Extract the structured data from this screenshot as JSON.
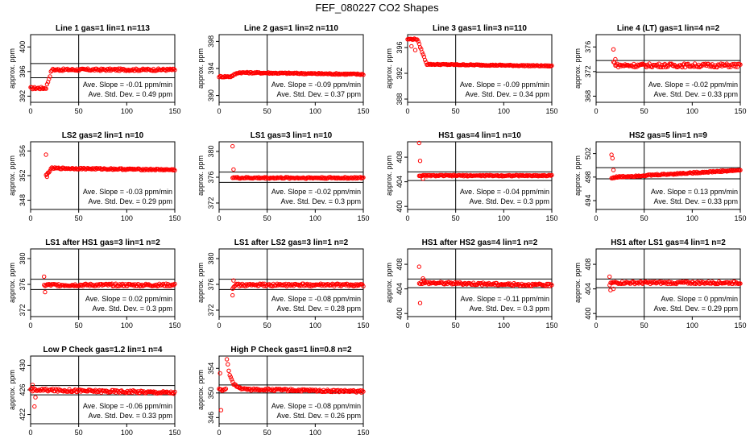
{
  "page": {
    "title": "FEF_080227  CO2 Shapes"
  },
  "colors": {
    "points": "#ff0000",
    "axis": "#000000",
    "background": "#ffffff"
  },
  "chart_data": [
    {
      "type": "scatter",
      "title": "Line 1 gas=1 lin=1 n=113",
      "ylabel": "approx. ppm",
      "xlim": [
        0,
        150
      ],
      "ylim": [
        391,
        402
      ],
      "xticks": [
        0,
        50,
        100,
        150
      ],
      "yticks": [
        392,
        396,
        400
      ],
      "hlines": [
        397.3,
        395.0
      ],
      "vline": 50,
      "annotations": [
        "Ave. Slope = -0.01 ppm/min",
        "Ave. Std. Dev. = 0.49 ppm"
      ],
      "shape": {
        "start": 0,
        "pre_end": 16,
        "pre": 393.3,
        "jump_end": 22,
        "level": 396.3,
        "slope": 0,
        "noise": 0.18,
        "spikes": []
      }
    },
    {
      "type": "scatter",
      "title": "Line 2 gas=1 lin=2 n=110",
      "ylabel": "approx. ppm",
      "xlim": [
        0,
        150
      ],
      "ylim": [
        389,
        399
      ],
      "xticks": [
        0,
        50,
        100,
        150
      ],
      "yticks": [
        390,
        394,
        398
      ],
      "hlines": [],
      "vline": 50,
      "annotations": [
        "Ave. Slope = -0.09 ppm/min",
        "Ave. Std. Dev. = 0.37 ppm"
      ],
      "shape": {
        "start": 0,
        "pre_end": 12,
        "pre": 392.8,
        "jump_end": 20,
        "level": 393.4,
        "slope": -0.002,
        "noise": 0.1,
        "spikes": []
      }
    },
    {
      "type": "scatter",
      "title": "Line 3 gas=1 lin=3 n=110",
      "ylabel": "approx. ppm",
      "xlim": [
        0,
        150
      ],
      "ylim": [
        387.5,
        398
      ],
      "xticks": [
        0,
        50,
        100,
        150
      ],
      "yticks": [
        388,
        392,
        396
      ],
      "hlines": [],
      "vline": 50,
      "annotations": [
        "Ave. Slope = -0.09 ppm/min",
        "Ave. Std. Dev. = 0.34 ppm"
      ],
      "shape": {
        "start": 0,
        "pre_end": 10,
        "pre": 397.3,
        "jump_end": 20,
        "level": 393.4,
        "slope": -0.002,
        "noise": 0.08,
        "spikes": [
          [
            4,
            396.2
          ],
          [
            8,
            395.6
          ]
        ]
      }
    },
    {
      "type": "scatter",
      "title": "Line 4 (LT) gas=1 lin=4 n=2",
      "ylabel": "approx. ppm",
      "xlim": [
        0,
        150
      ],
      "ylim": [
        367,
        378
      ],
      "xticks": [
        0,
        50,
        100,
        150
      ],
      "yticks": [
        368,
        372,
        376
      ],
      "hlines": [
        373.8,
        371.9
      ],
      "vline": 50,
      "annotations": [
        "Ave. Slope = -0.02 ppm/min",
        "Ave. Std. Dev. = 0.33 ppm"
      ],
      "shape": {
        "start": 18,
        "pre_end": 18,
        "pre": 373.5,
        "jump_end": 22,
        "level": 373.0,
        "slope": 0,
        "noise": 0.3,
        "spikes": [
          [
            18,
            375.6
          ],
          [
            20,
            374.0
          ]
        ]
      }
    },
    {
      "type": "scatter",
      "title": "LS2 gas=2 lin=1 n=10",
      "ylabel": "approx. ppm",
      "xlim": [
        0,
        150
      ],
      "ylim": [
        346.5,
        357.5
      ],
      "xticks": [
        0,
        50,
        100,
        150
      ],
      "yticks": [
        348,
        352,
        356
      ],
      "hlines": [],
      "vline": 50,
      "annotations": [
        "Ave. Slope = -0.03 ppm/min",
        "Ave. Std. Dev. = 0.29 ppm"
      ],
      "shape": {
        "start": 16,
        "pre_end": 16,
        "pre": 352.0,
        "jump_end": 22,
        "level": 353.2,
        "slope": -0.002,
        "noise": 0.12,
        "spikes": [
          [
            16,
            355.4
          ],
          [
            17,
            351.8
          ]
        ]
      }
    },
    {
      "type": "scatter",
      "title": "LS1 gas=3 lin=1 n=10",
      "ylabel": "approx. ppm",
      "xlim": [
        0,
        150
      ],
      "ylim": [
        371,
        381.5
      ],
      "xticks": [
        0,
        50,
        100,
        150
      ],
      "yticks": [
        372,
        376,
        380
      ],
      "hlines": [
        376.8,
        375.2
      ],
      "vline": 50,
      "annotations": [
        "Ave. Slope = -0.02 ppm/min",
        "Ave. Std. Dev. = 0.3 ppm"
      ],
      "shape": {
        "start": 14,
        "pre_end": 14,
        "pre": 376.0,
        "jump_end": 18,
        "level": 375.9,
        "slope": 0,
        "noise": 0.12,
        "spikes": [
          [
            14,
            380.8
          ],
          [
            15,
            377.2
          ]
        ]
      }
    },
    {
      "type": "scatter",
      "title": "HS1 gas=4 lin=1 n=10",
      "ylabel": "approx. ppm",
      "xlim": [
        0,
        150
      ],
      "ylim": [
        399.5,
        410.5
      ],
      "xticks": [
        0,
        50,
        100,
        150
      ],
      "yticks": [
        400,
        404,
        408
      ],
      "hlines": [
        405.6,
        404.2
      ],
      "vline": 50,
      "annotations": [
        "Ave. Slope = -0.04 ppm/min",
        "Ave. Std. Dev. = 0.3 ppm"
      ],
      "shape": {
        "start": 12,
        "pre_end": 12,
        "pre": 405.0,
        "jump_end": 18,
        "level": 405.0,
        "slope": 0,
        "noise": 0.1,
        "spikes": [
          [
            12,
            410.3
          ],
          [
            13,
            407.4
          ],
          [
            16,
            404.5
          ]
        ]
      }
    },
    {
      "type": "scatter",
      "title": "HS2 gas=5 lin=1 n=9",
      "ylabel": "approx. ppm",
      "xlim": [
        0,
        150
      ],
      "ylim": [
        492.5,
        504
      ],
      "xticks": [
        0,
        50,
        100,
        150
      ],
      "yticks": [
        494,
        498,
        502
      ],
      "hlines": [
        499.6,
        497.7
      ],
      "vline": 50,
      "annotations": [
        "Ave. Slope = 0.13 ppm/min",
        "Ave. Std. Dev. = 0.33 ppm"
      ],
      "shape": {
        "start": 16,
        "pre_end": 16,
        "pre": 497.8,
        "jump_end": 20,
        "level": 498.0,
        "slope": 0.009,
        "noise": 0.12,
        "spikes": [
          [
            16,
            501.8
          ],
          [
            17,
            501.2
          ],
          [
            18,
            499.2
          ]
        ]
      }
    },
    {
      "type": "scatter",
      "title": "LS1 after HS1 gas=3 lin=1 n=2",
      "ylabel": "approx. ppm",
      "xlim": [
        0,
        150
      ],
      "ylim": [
        371,
        381.5
      ],
      "xticks": [
        0,
        50,
        100,
        150
      ],
      "yticks": [
        372,
        376,
        380
      ],
      "hlines": [
        376.8,
        375.2
      ],
      "vline": 50,
      "annotations": [
        "Ave. Slope = 0.02 ppm/min",
        "Ave. Std. Dev. = 0.3 ppm"
      ],
      "shape": {
        "start": 14,
        "pre_end": 14,
        "pre": 375.8,
        "jump_end": 16,
        "level": 375.9,
        "slope": 0,
        "noise": 0.2,
        "spikes": [
          [
            14,
            377.2
          ],
          [
            15,
            374.8
          ]
        ]
      }
    },
    {
      "type": "scatter",
      "title": "LS1 after LS2 gas=3 lin=1 n=2",
      "ylabel": "approx. ppm",
      "xlim": [
        0,
        150
      ],
      "ylim": [
        371,
        381.5
      ],
      "xticks": [
        0,
        50,
        100,
        150
      ],
      "yticks": [
        372,
        376,
        380
      ],
      "hlines": [
        376.8,
        375.2
      ],
      "vline": 50,
      "annotations": [
        "Ave. Slope = -0.08 ppm/min",
        "Ave. Std. Dev. = 0.28 ppm"
      ],
      "shape": {
        "start": 14,
        "pre_end": 14,
        "pre": 375.5,
        "jump_end": 16,
        "level": 375.9,
        "slope": 0,
        "noise": 0.2,
        "spikes": [
          [
            14,
            374.3
          ],
          [
            15,
            376.6
          ]
        ]
      }
    },
    {
      "type": "scatter",
      "title": "HS1 after HS2 gas=4 lin=1 n=2",
      "ylabel": "approx. ppm",
      "xlim": [
        0,
        150
      ],
      "ylim": [
        399.5,
        410.5
      ],
      "xticks": [
        0,
        50,
        100,
        150
      ],
      "yticks": [
        400,
        404,
        408
      ],
      "hlines": [
        405.6,
        404.2
      ],
      "vline": 50,
      "annotations": [
        "Ave. Slope = -0.11 ppm/min",
        "Ave. Std. Dev. = 0.3 ppm"
      ],
      "shape": {
        "start": 12,
        "pre_end": 12,
        "pre": 405.0,
        "jump_end": 18,
        "level": 405.0,
        "slope": -0.003,
        "noise": 0.2,
        "spikes": [
          [
            12,
            407.6
          ],
          [
            13,
            401.7
          ],
          [
            16,
            405.7
          ],
          [
            17,
            405.4
          ]
        ]
      }
    },
    {
      "type": "scatter",
      "title": "HS1 after LS1 gas=4 lin=1 n=2",
      "ylabel": "approx. ppm",
      "xlim": [
        0,
        150
      ],
      "ylim": [
        399.5,
        410.5
      ],
      "xticks": [
        0,
        50,
        100,
        150
      ],
      "yticks": [
        400,
        404,
        408
      ],
      "hlines": [
        405.6,
        404.2
      ],
      "vline": 50,
      "annotations": [
        "Ave. Slope = 0 ppm/min",
        "Ave. Std. Dev. = 0.29 ppm"
      ],
      "shape": {
        "start": 14,
        "pre_end": 14,
        "pre": 404.6,
        "jump_end": 16,
        "level": 405.0,
        "slope": 0,
        "noise": 0.2,
        "spikes": [
          [
            14,
            406.0
          ],
          [
            15,
            403.8
          ],
          [
            18,
            404.0
          ]
        ]
      }
    },
    {
      "type": "scatter",
      "title": "Low P Check gas=1.2 lin=1 n=4",
      "ylabel": "approx. ppm",
      "xlim": [
        0,
        150
      ],
      "ylim": [
        420.5,
        431.5
      ],
      "xticks": [
        0,
        50,
        100,
        150
      ],
      "yticks": [
        422,
        426,
        430
      ],
      "hlines": [
        426.7,
        425.2
      ],
      "vline": 50,
      "annotations": [
        "Ave. Slope = -0.06 ppm/min",
        "Ave. Std. Dev. = 0.33 ppm"
      ],
      "shape": {
        "start": 0,
        "pre_end": 0,
        "pre": 426.0,
        "jump_end": 4,
        "level": 426.0,
        "slope": -0.003,
        "noise": 0.22,
        "spikes": [
          [
            2,
            426.8
          ],
          [
            4,
            423.3
          ],
          [
            5,
            424.8
          ]
        ]
      }
    },
    {
      "type": "scatter",
      "title": "High P Check gas=1 lin=0.8 n=2",
      "ylabel": "approx. ppm",
      "xlim": [
        0,
        150
      ],
      "ylim": [
        345,
        356
      ],
      "xticks": [
        0,
        50,
        100,
        150
      ],
      "yticks": [
        346,
        350,
        354
      ],
      "hlines": [
        351.3,
        350.0
      ],
      "vline": 50,
      "annotations": [
        "Ave. Slope = -0.08 ppm/min",
        "Ave. Std. Dev. = 0.26 ppm"
      ],
      "shape": {
        "start": 0,
        "pre_end": 0,
        "pre": 350.5,
        "jump_end": 25,
        "level": 350.6,
        "slope": -0.003,
        "noise": 0.18,
        "decay": {
          "from": 8,
          "to": 25,
          "top": 355.6
        },
        "spikes": [
          [
            1,
            353.2
          ],
          [
            2,
            347.2
          ]
        ]
      }
    }
  ]
}
